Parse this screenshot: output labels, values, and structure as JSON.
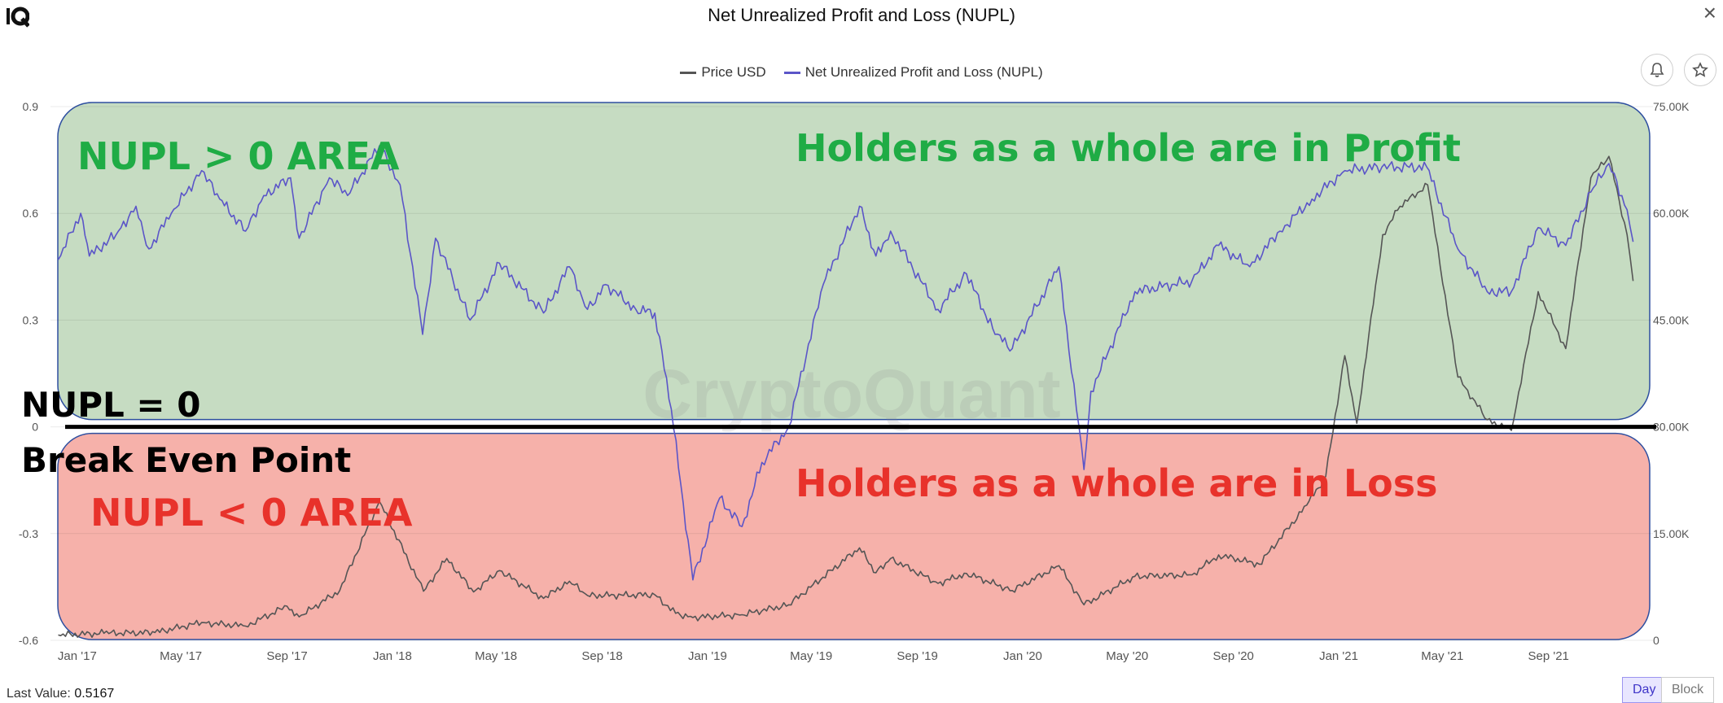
{
  "header": {
    "title": "Net Unrealized Profit and Loss (NUPL)",
    "logo_icon": "cryptoquant-logo-icon",
    "close_icon": "close-icon"
  },
  "toolbar": {
    "bell_icon": "bell-icon",
    "star_icon": "star-icon"
  },
  "watermark": "CryptoQuant",
  "footer": {
    "last_value_label": "Last Value:",
    "last_value": "0.5167",
    "day_label": "Day",
    "block_label": "Block"
  },
  "colors": {
    "price": "#555555",
    "nupl": "#5b55c8",
    "profit_fill": "#c6dcc2",
    "loss_fill": "#f6b1aa",
    "profit_text": "#1fac45",
    "loss_text": "#e8322b",
    "box_border": "#2e4fa0"
  },
  "annotations": {
    "profit_area": "NUPL > 0 AREA",
    "profit_caption": "Holders as a whole are in Profit",
    "zero_label": "NUPL = 0",
    "break_even": "Break Even Point",
    "loss_area": "NUPL < 0 AREA",
    "loss_caption": "Holders as a whole are in Loss"
  },
  "chart_data": {
    "type": "line",
    "title": "Net Unrealized Profit and Loss (NUPL)",
    "legend": [
      "Price USD",
      "Net Unrealized Profit and Loss (NUPL)"
    ],
    "legend_position": "top-center",
    "x_tick_labels": [
      "Jan '17",
      "May '17",
      "Sep '17",
      "Jan '18",
      "May '18",
      "Sep '18",
      "Jan '19",
      "May '19",
      "Sep '19",
      "Jan '20",
      "May '20",
      "Sep '20",
      "Jan '21",
      "May '21",
      "Sep '21"
    ],
    "x_range": [
      "2016-12-01",
      "2021-12-31"
    ],
    "y_left": {
      "range": [
        -0.6,
        0.9
      ],
      "ticks": [
        "0.9",
        "0.6",
        "0.3",
        "0",
        "-0.3",
        "-0.6"
      ]
    },
    "y_right": {
      "range": [
        0,
        75000
      ],
      "ticks": [
        "75.00K",
        "60.00K",
        "45.00K",
        "30.00K",
        "15.00K",
        "0"
      ]
    },
    "grid": true,
    "series": [
      {
        "name": "Net Unrealized Profit and Loss (NUPL)",
        "axis": "left",
        "points": [
          [
            "2016-12-10",
            0.47
          ],
          [
            "2017-01-05",
            0.6
          ],
          [
            "2017-01-15",
            0.48
          ],
          [
            "2017-02-15",
            0.54
          ],
          [
            "2017-03-10",
            0.62
          ],
          [
            "2017-03-25",
            0.5
          ],
          [
            "2017-04-20",
            0.6
          ],
          [
            "2017-05-25",
            0.72
          ],
          [
            "2017-06-15",
            0.64
          ],
          [
            "2017-07-15",
            0.55
          ],
          [
            "2017-08-05",
            0.65
          ],
          [
            "2017-09-05",
            0.7
          ],
          [
            "2017-09-15",
            0.53
          ],
          [
            "2017-10-20",
            0.7
          ],
          [
            "2017-11-10",
            0.65
          ],
          [
            "2017-12-17",
            0.79
          ],
          [
            "2018-01-10",
            0.68
          ],
          [
            "2018-02-05",
            0.26
          ],
          [
            "2018-02-20",
            0.53
          ],
          [
            "2018-04-01",
            0.3
          ],
          [
            "2018-05-05",
            0.46
          ],
          [
            "2018-06-25",
            0.32
          ],
          [
            "2018-07-25",
            0.45
          ],
          [
            "2018-08-15",
            0.33
          ],
          [
            "2018-09-05",
            0.4
          ],
          [
            "2018-10-10",
            0.33
          ],
          [
            "2018-11-01",
            0.32
          ],
          [
            "2018-11-20",
            0.05
          ],
          [
            "2018-12-15",
            -0.43
          ],
          [
            "2019-01-15",
            -0.2
          ],
          [
            "2019-02-10",
            -0.28
          ],
          [
            "2019-03-05",
            -0.1
          ],
          [
            "2019-04-05",
            0.0
          ],
          [
            "2019-05-15",
            0.4
          ],
          [
            "2019-06-26",
            0.62
          ],
          [
            "2019-07-15",
            0.48
          ],
          [
            "2019-08-01",
            0.55
          ],
          [
            "2019-09-25",
            0.33
          ],
          [
            "2019-10-28",
            0.43
          ],
          [
            "2019-11-30",
            0.26
          ],
          [
            "2019-12-20",
            0.22
          ],
          [
            "2020-02-12",
            0.45
          ],
          [
            "2020-03-12",
            -0.12
          ],
          [
            "2020-03-20",
            0.1
          ],
          [
            "2020-05-10",
            0.38
          ],
          [
            "2020-07-15",
            0.41
          ],
          [
            "2020-08-15",
            0.51
          ],
          [
            "2020-09-20",
            0.45
          ],
          [
            "2020-10-25",
            0.55
          ],
          [
            "2020-12-01",
            0.64
          ],
          [
            "2021-01-08",
            0.72
          ],
          [
            "2021-02-20",
            0.73
          ],
          [
            "2021-04-13",
            0.73
          ],
          [
            "2021-05-19",
            0.5
          ],
          [
            "2021-06-22",
            0.38
          ],
          [
            "2021-07-20",
            0.38
          ],
          [
            "2021-08-20",
            0.56
          ],
          [
            "2021-09-21",
            0.51
          ],
          [
            "2021-10-20",
            0.66
          ],
          [
            "2021-11-10",
            0.74
          ],
          [
            "2021-12-01",
            0.61
          ],
          [
            "2021-12-08",
            0.52
          ]
        ]
      },
      {
        "name": "Price USD",
        "axis": "right",
        "points": [
          [
            "2016-12-10",
            750
          ],
          [
            "2017-02-01",
            1000
          ],
          [
            "2017-04-01",
            1100
          ],
          [
            "2017-05-25",
            2500
          ],
          [
            "2017-07-15",
            2000
          ],
          [
            "2017-09-01",
            4800
          ],
          [
            "2017-09-15",
            3300
          ],
          [
            "2017-11-01",
            7000
          ],
          [
            "2017-12-17",
            19500
          ],
          [
            "2018-02-06",
            6900
          ],
          [
            "2018-03-05",
            11500
          ],
          [
            "2018-04-05",
            6800
          ],
          [
            "2018-05-05",
            9800
          ],
          [
            "2018-06-25",
            5900
          ],
          [
            "2018-07-25",
            8300
          ],
          [
            "2018-08-15",
            6300
          ],
          [
            "2018-11-01",
            6400
          ],
          [
            "2018-11-25",
            3800
          ],
          [
            "2018-12-15",
            3200
          ],
          [
            "2019-02-10",
            3600
          ],
          [
            "2019-04-05",
            5000
          ],
          [
            "2019-06-26",
            13000
          ],
          [
            "2019-07-15",
            9500
          ],
          [
            "2019-08-01",
            11500
          ],
          [
            "2019-09-25",
            8000
          ],
          [
            "2019-10-28",
            9400
          ],
          [
            "2019-12-20",
            7000
          ],
          [
            "2020-02-12",
            10500
          ],
          [
            "2020-03-12",
            5000
          ],
          [
            "2020-05-10",
            9000
          ],
          [
            "2020-07-15",
            9200
          ],
          [
            "2020-08-15",
            12000
          ],
          [
            "2020-10-01",
            10700
          ],
          [
            "2020-11-25",
            19000
          ],
          [
            "2020-12-17",
            23000
          ],
          [
            "2021-01-08",
            40000
          ],
          [
            "2021-01-22",
            30500
          ],
          [
            "2021-02-21",
            57000
          ],
          [
            "2021-03-13",
            61000
          ],
          [
            "2021-04-14",
            64000
          ],
          [
            "2021-05-19",
            37000
          ],
          [
            "2021-06-22",
            31000
          ],
          [
            "2021-07-20",
            29500
          ],
          [
            "2021-08-20",
            49000
          ],
          [
            "2021-09-21",
            41000
          ],
          [
            "2021-10-20",
            65000
          ],
          [
            "2021-11-10",
            68000
          ],
          [
            "2021-12-01",
            57000
          ],
          [
            "2021-12-08",
            50500
          ]
        ]
      }
    ]
  }
}
